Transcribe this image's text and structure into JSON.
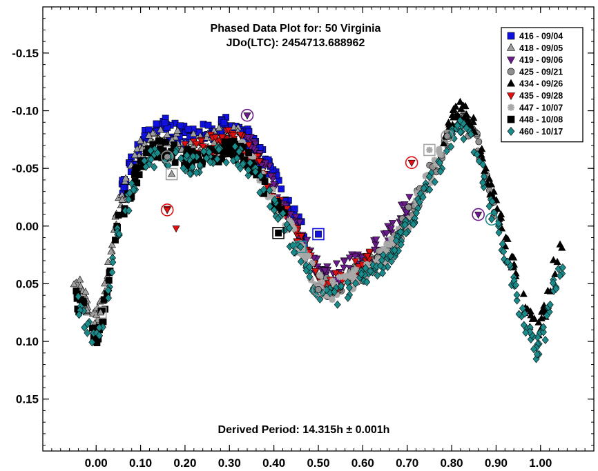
{
  "chart_data": {
    "type": "scatter",
    "title": "Phased Data Plot for: 50 Virginia",
    "subtitle": "JDo(LTC): 2454713.688962",
    "annotation": "Derived Period: 14.315h  ± 0.001h",
    "xlim": [
      -0.12,
      1.12
    ],
    "ylim": [
      0.195,
      -0.19
    ],
    "y_inverted": true,
    "x_ticks": [
      0.0,
      0.1,
      0.2,
      0.3,
      0.4,
      0.5,
      0.6,
      0.7,
      0.8,
      0.9,
      1.0
    ],
    "x_tick_labels": [
      "0.00",
      "0.10",
      "0.20",
      "0.30",
      "0.40",
      "0.50",
      "0.60",
      "0.70",
      "0.80",
      "0.90",
      "1.00"
    ],
    "y_ticks": [
      -0.15,
      -0.1,
      -0.05,
      0.0,
      0.05,
      0.1,
      0.15
    ],
    "y_tick_labels": [
      "-0.15",
      "-0.10",
      "-0.05",
      "0.00",
      "0.05",
      "0.10",
      "0.15"
    ],
    "legend_position": "top-right",
    "curve": {
      "x": [
        -0.05,
        0.0,
        0.02,
        0.05,
        0.08,
        0.1,
        0.12,
        0.15,
        0.18,
        0.21,
        0.24,
        0.27,
        0.3,
        0.33,
        0.36,
        0.4,
        0.44,
        0.48,
        0.5,
        0.53,
        0.56,
        0.6,
        0.65,
        0.7,
        0.74,
        0.78,
        0.81,
        0.83,
        0.86,
        0.88,
        0.91,
        0.94,
        0.97,
        0.99,
        1.01,
        1.03,
        1.05
      ],
      "mag": [
        0.05,
        0.09,
        0.06,
        -0.01,
        -0.04,
        -0.06,
        -0.07,
        -0.075,
        -0.07,
        -0.065,
        -0.068,
        -0.072,
        -0.075,
        -0.07,
        -0.055,
        -0.03,
        0.0,
        0.03,
        0.045,
        0.05,
        0.045,
        0.035,
        0.02,
        -0.01,
        -0.04,
        -0.07,
        -0.095,
        -0.095,
        -0.075,
        -0.04,
        0.0,
        0.04,
        0.08,
        0.095,
        0.08,
        0.04,
        0.02
      ]
    },
    "series": [
      {
        "name": "416 - 09/04",
        "color": "#1010e0",
        "marker": "square",
        "x_range": [
          0.05,
          0.47
        ],
        "mag_offset": -0.012,
        "seed": 11
      },
      {
        "name": "418 - 09/05",
        "color": "#a0a0a0",
        "marker": "triangle-up",
        "x_range": [
          -0.05,
          0.32
        ],
        "mag_offset": -0.006,
        "seed": 23
      },
      {
        "name": "419 - 09/06",
        "color": "#6a1a8a",
        "marker": "triangle-down",
        "x_range": [
          0.33,
          0.72
        ],
        "mag_offset": -0.008,
        "seed": 37
      },
      {
        "name": "425 - 09/21",
        "color": "#909090",
        "marker": "circle",
        "x_range": [
          0.5,
          0.9
        ],
        "mag_offset": 0.004,
        "seed": 41
      },
      {
        "name": "434 - 09/26",
        "color": "#000000",
        "marker": "triangle-up",
        "x_range": [
          0.78,
          1.05
        ],
        "mag_offset": -0.004,
        "seed": 53
      },
      {
        "name": "435 - 09/28",
        "color": "#e01010",
        "marker": "triangle-down",
        "x_range": [
          0.2,
          0.62
        ],
        "mag_offset": 0.0,
        "seed": 67
      },
      {
        "name": "447 - 10/07",
        "color": "#a8a8a8",
        "marker": "asterisk",
        "x_range": [
          0.3,
          0.78
        ],
        "mag_offset": 0.006,
        "seed": 71
      },
      {
        "name": "448 - 10/08",
        "color": "#000000",
        "marker": "square",
        "x_range": [
          -0.05,
          0.43
        ],
        "mag_offset": 0.008,
        "seed": 83
      },
      {
        "name": "460 - 10/17",
        "color": "#1a8a8a",
        "marker": "diamond",
        "x_range": [
          -0.05,
          1.05
        ],
        "mag_offset": 0.012,
        "seed": 97
      }
    ],
    "highlighted_points": [
      {
        "series": 0,
        "x": 0.5,
        "mag": 0.007
      },
      {
        "series": 1,
        "x": 0.17,
        "mag": -0.045
      },
      {
        "series": 1,
        "x": 0.01,
        "mag": 0.075
      },
      {
        "series": 2,
        "x": 0.34,
        "mag": -0.096
      },
      {
        "series": 2,
        "x": 0.86,
        "mag": -0.01
      },
      {
        "series": 3,
        "x": 0.16,
        "mag": -0.06
      },
      {
        "series": 3,
        "x": 0.79,
        "mag": -0.078
      },
      {
        "series": 3,
        "x": 0.5,
        "mag": 0.055
      },
      {
        "series": 5,
        "x": 0.16,
        "mag": -0.014
      },
      {
        "series": 5,
        "x": 0.71,
        "mag": -0.055
      },
      {
        "series": 6,
        "x": 0.75,
        "mag": -0.066
      },
      {
        "series": 7,
        "x": 0.41,
        "mag": 0.006
      },
      {
        "series": 8,
        "x": 0.46,
        "mag": 0.018
      },
      {
        "series": 8,
        "x": 0.89,
        "mag": -0.006
      }
    ],
    "outliers": [
      {
        "series": 5,
        "x": 0.16,
        "mag": -0.015
      },
      {
        "series": 5,
        "x": 0.18,
        "mag": 0.002
      }
    ]
  }
}
